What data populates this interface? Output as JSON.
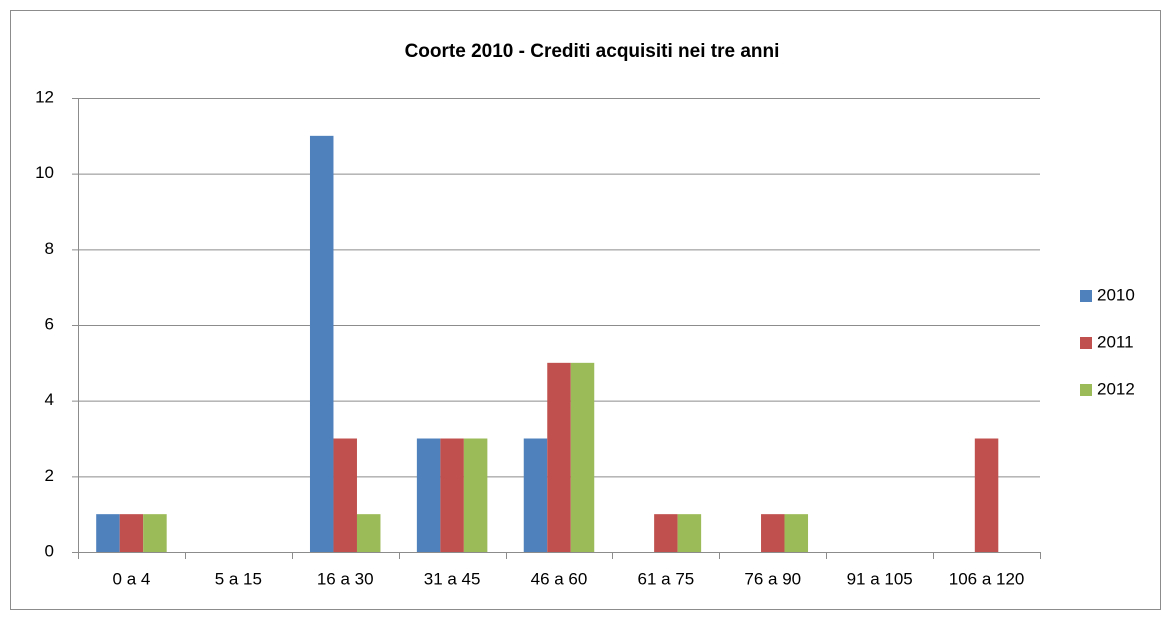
{
  "chart_data": {
    "type": "bar",
    "title": "Coorte 2010 - Crediti acquisiti nei tre anni",
    "categories": [
      "0 a 4",
      "5 a 15",
      "16 a 30",
      "31 a 45",
      "46 a 60",
      "61 a 75",
      "76 a 90",
      "91 a 105",
      "106 a 120"
    ],
    "series": [
      {
        "name": "2010",
        "color": "#4f81bd",
        "values": [
          1,
          0,
          11,
          3,
          3,
          0,
          0,
          0,
          0
        ]
      },
      {
        "name": "2011",
        "color": "#c0504d",
        "values": [
          1,
          0,
          3,
          3,
          5,
          1,
          1,
          0,
          3
        ]
      },
      {
        "name": "2012",
        "color": "#9bbb59",
        "values": [
          1,
          0,
          1,
          3,
          5,
          1,
          1,
          0,
          0
        ]
      }
    ],
    "ylim": [
      0,
      12
    ],
    "yticks": [
      0,
      2,
      4,
      6,
      8,
      10,
      12
    ],
    "grid": true,
    "legend": "right"
  }
}
